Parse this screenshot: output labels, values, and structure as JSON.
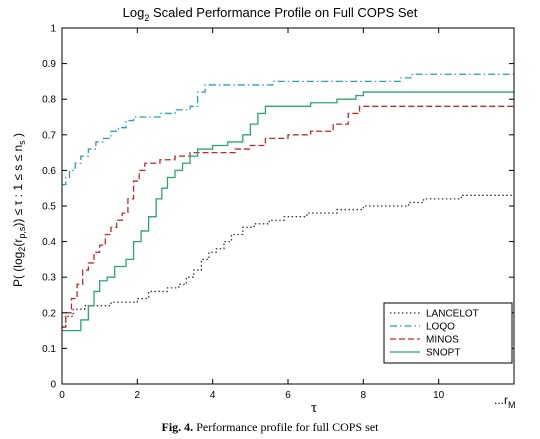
{
  "chart_data": {
    "type": "line",
    "title": "Log2 Scaled Performance Profile on Full COPS Set",
    "title_parts": {
      "main_pre": "Log",
      "main_sub": "2",
      "main_post": " Scaled Performance Profile on Full COPS Set"
    },
    "xlabel": "τ",
    "ylabel": "P( (log2(rp,s)) ≤ τ : 1 ≤ s ≤ ns )",
    "xlim": [
      0,
      12
    ],
    "ylim": [
      0,
      1
    ],
    "x_ticks": [
      0,
      2,
      4,
      6,
      8,
      10
    ],
    "x_tick_labels": [
      "0",
      "2",
      "4",
      "6",
      "8",
      "10"
    ],
    "x_end_label": "...r",
    "x_end_sub": "M",
    "y_ticks": [
      0,
      0.1,
      0.2,
      0.3,
      0.4,
      0.5,
      0.6,
      0.7,
      0.8,
      0.9,
      1
    ],
    "y_tick_labels": [
      "0",
      "0.1",
      "0.2",
      "0.3",
      "0.4",
      "0.5",
      "0.6",
      "0.7",
      "0.8",
      "0.9",
      "1"
    ],
    "grid": false,
    "legend_position": "bottom-right",
    "series": [
      {
        "name": "LANCELOT",
        "color": "#333333",
        "dash": "dotted",
        "points": [
          [
            0,
            0.16
          ],
          [
            0.1,
            0.19
          ],
          [
            0.3,
            0.21
          ],
          [
            0.6,
            0.22
          ],
          [
            1.0,
            0.22
          ],
          [
            1.3,
            0.23
          ],
          [
            1.6,
            0.23
          ],
          [
            2.0,
            0.24
          ],
          [
            2.3,
            0.26
          ],
          [
            2.8,
            0.27
          ],
          [
            3.1,
            0.28
          ],
          [
            3.3,
            0.3
          ],
          [
            3.5,
            0.32
          ],
          [
            3.7,
            0.35
          ],
          [
            3.9,
            0.37
          ],
          [
            4.1,
            0.38
          ],
          [
            4.3,
            0.4
          ],
          [
            4.5,
            0.42
          ],
          [
            4.8,
            0.44
          ],
          [
            5.1,
            0.45
          ],
          [
            5.5,
            0.46
          ],
          [
            5.9,
            0.47
          ],
          [
            6.5,
            0.48
          ],
          [
            7.3,
            0.49
          ],
          [
            8.0,
            0.5
          ],
          [
            8.6,
            0.5
          ],
          [
            9.2,
            0.51
          ],
          [
            9.6,
            0.52
          ],
          [
            10.2,
            0.52
          ],
          [
            10.6,
            0.53
          ],
          [
            12.0,
            0.53
          ]
        ]
      },
      {
        "name": "LOQO",
        "color": "#2a9fb5",
        "dash": "dashdot",
        "points": [
          [
            0,
            0.56
          ],
          [
            0.1,
            0.58
          ],
          [
            0.2,
            0.6
          ],
          [
            0.35,
            0.62
          ],
          [
            0.5,
            0.64
          ],
          [
            0.7,
            0.66
          ],
          [
            0.9,
            0.68
          ],
          [
            1.1,
            0.69
          ],
          [
            1.3,
            0.71
          ],
          [
            1.5,
            0.72
          ],
          [
            1.7,
            0.74
          ],
          [
            1.9,
            0.75
          ],
          [
            2.4,
            0.75
          ],
          [
            2.6,
            0.76
          ],
          [
            3.0,
            0.77
          ],
          [
            3.4,
            0.78
          ],
          [
            3.6,
            0.82
          ],
          [
            3.8,
            0.84
          ],
          [
            4.5,
            0.84
          ],
          [
            5.0,
            0.84
          ],
          [
            5.6,
            0.85
          ],
          [
            7.0,
            0.85
          ],
          [
            7.6,
            0.85
          ],
          [
            9.0,
            0.86
          ],
          [
            9.3,
            0.87
          ],
          [
            12.0,
            0.87
          ]
        ]
      },
      {
        "name": "MINOS",
        "color": "#c0282d",
        "dash": "dashed",
        "points": [
          [
            0,
            0.16
          ],
          [
            0.1,
            0.2
          ],
          [
            0.25,
            0.24
          ],
          [
            0.4,
            0.28
          ],
          [
            0.55,
            0.32
          ],
          [
            0.7,
            0.34
          ],
          [
            0.85,
            0.37
          ],
          [
            1.0,
            0.39
          ],
          [
            1.15,
            0.42
          ],
          [
            1.3,
            0.44
          ],
          [
            1.45,
            0.46
          ],
          [
            1.6,
            0.48
          ],
          [
            1.75,
            0.52
          ],
          [
            1.9,
            0.57
          ],
          [
            2.05,
            0.6
          ],
          [
            2.2,
            0.62
          ],
          [
            2.6,
            0.63
          ],
          [
            3.0,
            0.64
          ],
          [
            3.4,
            0.65
          ],
          [
            4.0,
            0.65
          ],
          [
            4.6,
            0.66
          ],
          [
            5.0,
            0.67
          ],
          [
            5.4,
            0.69
          ],
          [
            6.0,
            0.7
          ],
          [
            6.6,
            0.71
          ],
          [
            7.2,
            0.73
          ],
          [
            7.6,
            0.76
          ],
          [
            7.9,
            0.78
          ],
          [
            12.0,
            0.78
          ]
        ]
      },
      {
        "name": "SNOPT",
        "color": "#2aa86b",
        "dash": "solid",
        "points": [
          [
            0,
            0.15
          ],
          [
            0.4,
            0.15
          ],
          [
            0.5,
            0.18
          ],
          [
            0.7,
            0.22
          ],
          [
            0.85,
            0.26
          ],
          [
            1.0,
            0.29
          ],
          [
            1.2,
            0.3
          ],
          [
            1.4,
            0.33
          ],
          [
            1.7,
            0.35
          ],
          [
            1.9,
            0.4
          ],
          [
            2.1,
            0.43
          ],
          [
            2.3,
            0.47
          ],
          [
            2.5,
            0.52
          ],
          [
            2.65,
            0.55
          ],
          [
            2.8,
            0.58
          ],
          [
            3.0,
            0.6
          ],
          [
            3.2,
            0.62
          ],
          [
            3.4,
            0.64
          ],
          [
            3.6,
            0.66
          ],
          [
            4.0,
            0.67
          ],
          [
            4.4,
            0.68
          ],
          [
            4.8,
            0.7
          ],
          [
            5.0,
            0.73
          ],
          [
            5.2,
            0.76
          ],
          [
            5.4,
            0.78
          ],
          [
            6.0,
            0.78
          ],
          [
            6.6,
            0.79
          ],
          [
            7.3,
            0.8
          ],
          [
            7.8,
            0.81
          ],
          [
            8.0,
            0.82
          ],
          [
            12.0,
            0.82
          ]
        ]
      }
    ]
  },
  "caption": {
    "label": "Fig. 4.",
    "text": " Performance profile for full COPS set"
  }
}
